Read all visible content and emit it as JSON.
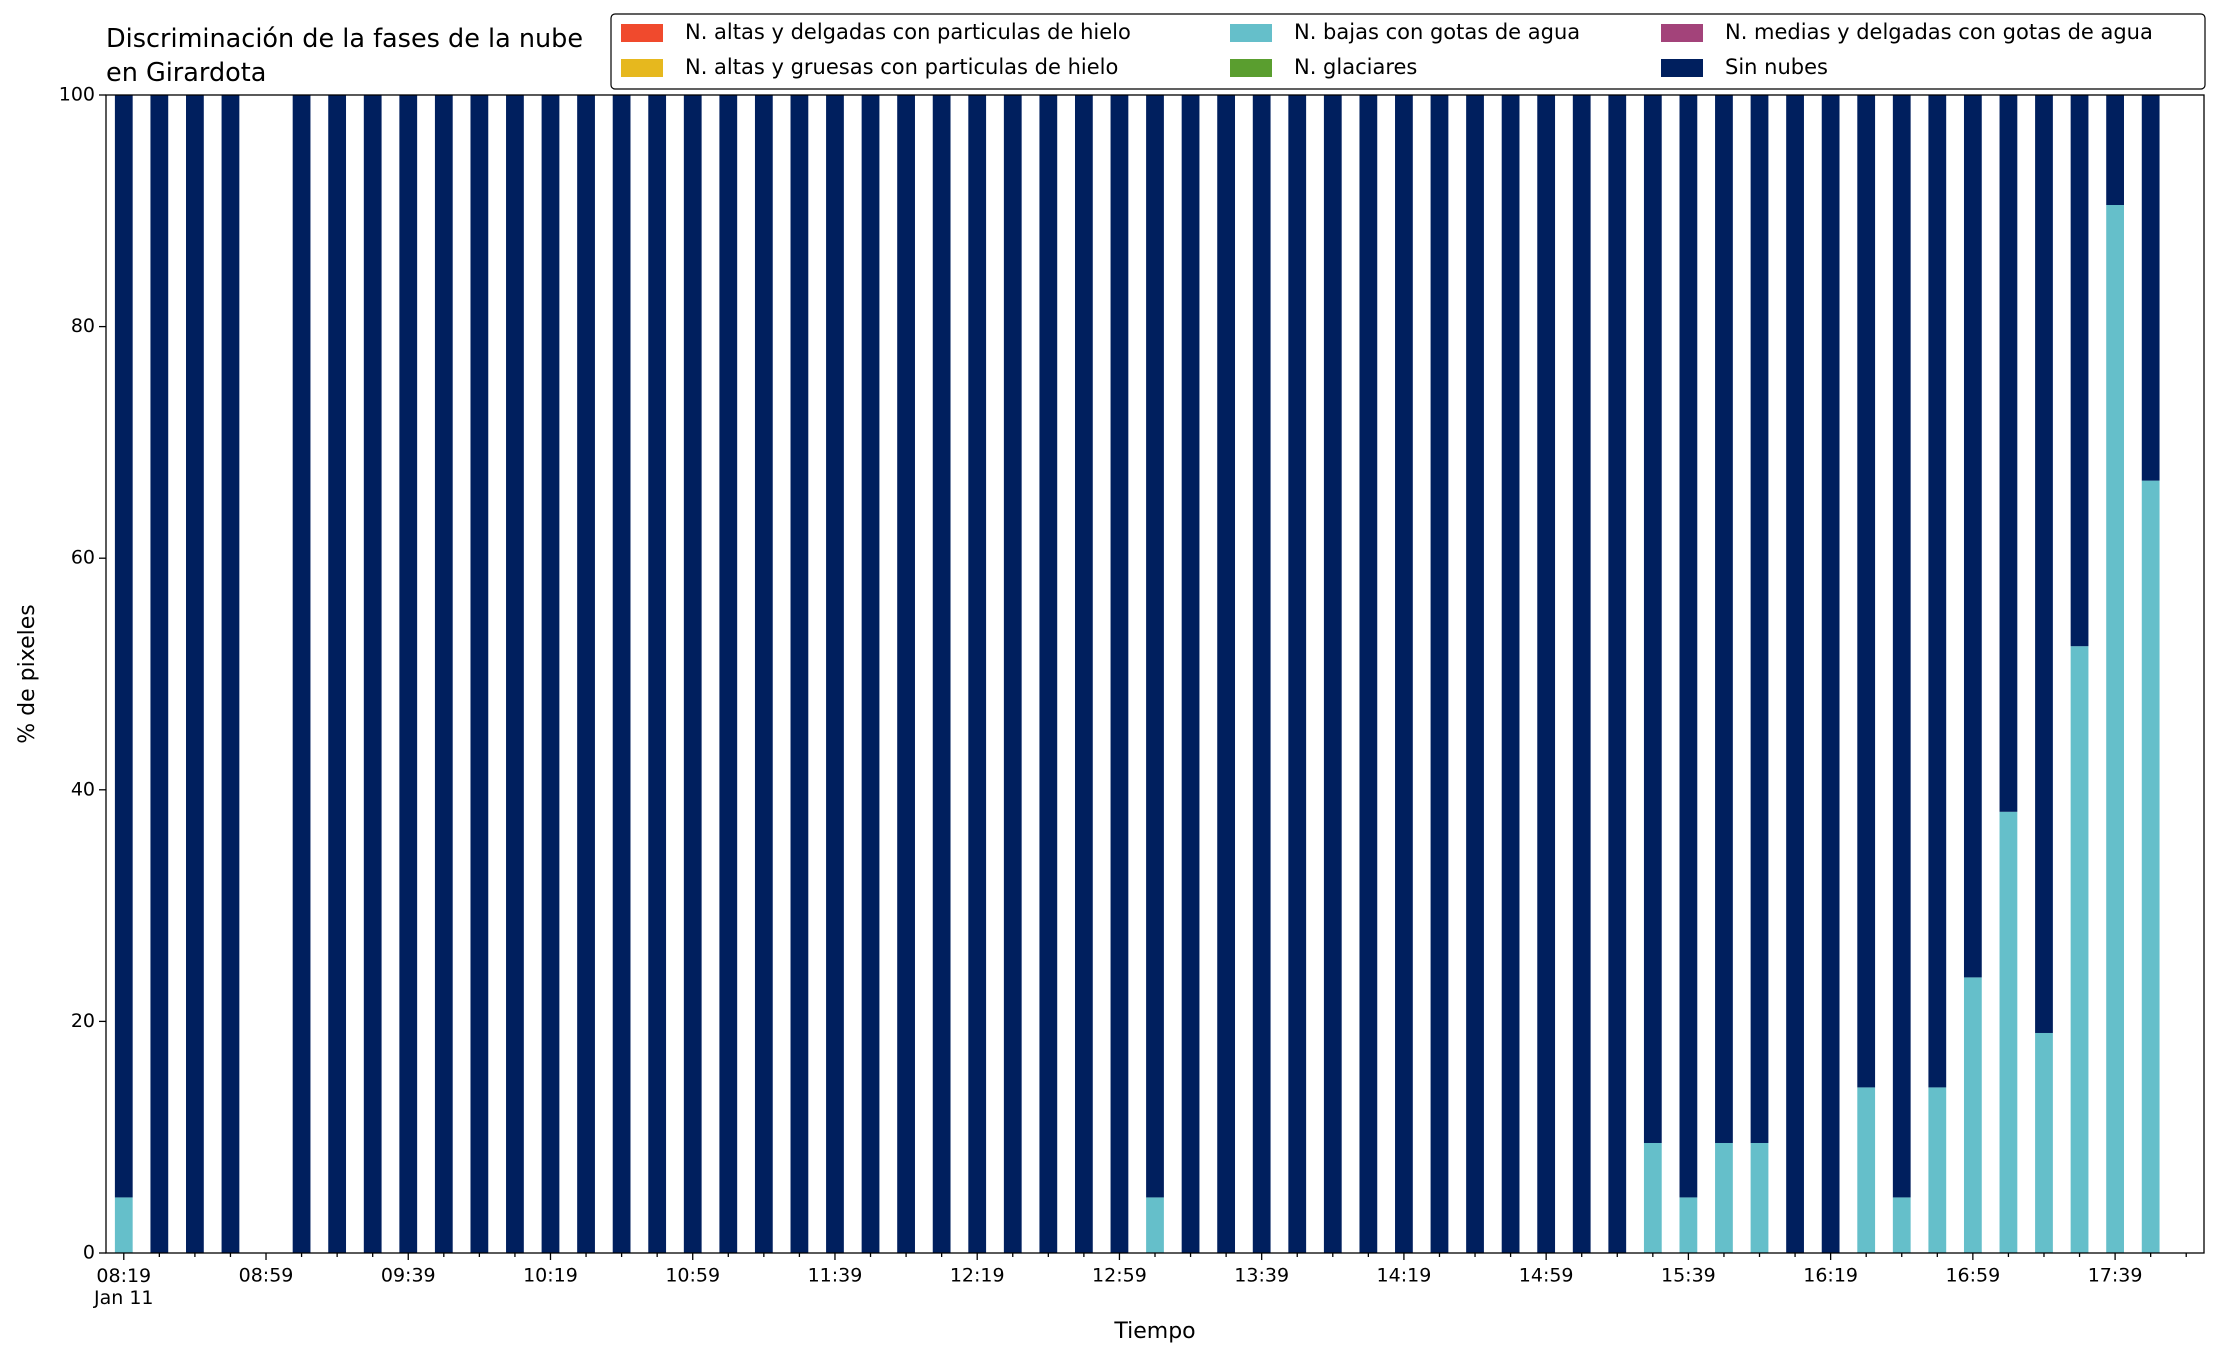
{
  "chart_data": {
    "type": "stacked_bar",
    "title": "Discriminación de la fases de la nube en Girardota",
    "x_label": "Tiempo",
    "y_label": "% de pixeles",
    "categories": [
      "08:19\nJan 11",
      null,
      null,
      null,
      "08:59",
      null,
      null,
      null,
      "09:39",
      null,
      null,
      null,
      "10:19",
      null,
      null,
      null,
      "10:59",
      null,
      null,
      null,
      "11:39",
      null,
      null,
      null,
      "12:19",
      null,
      null,
      null,
      "12:59",
      null,
      null,
      null,
      "13:39",
      null,
      null,
      null,
      "14:19",
      null,
      null,
      null,
      "14:59",
      null,
      null,
      null,
      "15:39",
      null,
      null,
      null,
      "16:19",
      null,
      null,
      null,
      "16:59",
      null,
      null,
      null,
      "17:39",
      null,
      null
    ],
    "series": [
      {
        "name": "N. altas y delgadas con particulas de hielo",
        "color": "#f04a2d",
        "values": [
          0,
          0,
          0,
          0,
          null,
          0,
          0,
          0,
          0,
          0,
          0,
          0,
          0,
          0,
          0,
          0,
          0,
          0,
          0,
          0,
          0,
          0,
          0,
          0,
          0,
          0,
          0,
          0,
          0,
          0,
          0,
          0,
          0,
          0,
          0,
          0,
          0,
          0,
          0,
          0,
          0,
          0,
          0,
          0,
          0,
          0,
          0,
          0,
          0,
          0,
          0,
          0,
          0,
          0,
          0,
          0,
          0,
          0,
          null
        ]
      },
      {
        "name": "N. altas y gruesas con particulas de hielo",
        "color": "#e6b81e",
        "values": [
          0,
          0,
          0,
          0,
          null,
          0,
          0,
          0,
          0,
          0,
          0,
          0,
          0,
          0,
          0,
          0,
          0,
          0,
          0,
          0,
          0,
          0,
          0,
          0,
          0,
          0,
          0,
          0,
          0,
          0,
          0,
          0,
          0,
          0,
          0,
          0,
          0,
          0,
          0,
          0,
          0,
          0,
          0,
          0,
          0,
          0,
          0,
          0,
          0,
          0,
          0,
          0,
          0,
          0,
          0,
          0,
          0,
          0,
          null
        ]
      },
      {
        "name": "N. bajas con gotas de agua",
        "color": "#65bfca",
        "values": [
          4.8,
          0,
          0,
          0,
          null,
          0,
          0,
          0,
          0,
          0,
          0,
          0,
          0,
          0,
          0,
          0,
          0,
          0,
          0,
          0,
          0,
          0,
          0,
          0,
          0,
          0,
          0,
          0,
          0,
          4.8,
          0,
          0,
          0,
          0,
          0,
          0,
          0,
          0,
          0,
          0,
          0,
          0,
          0,
          9.5,
          4.8,
          9.5,
          9.5,
          0,
          0,
          14.3,
          4.8,
          14.3,
          23.8,
          38.1,
          19.0,
          52.4,
          90.5,
          66.7,
          null
        ]
      },
      {
        "name": "N. glaciares",
        "color": "#5a9e2f",
        "values": [
          0,
          0,
          0,
          0,
          null,
          0,
          0,
          0,
          0,
          0,
          0,
          0,
          0,
          0,
          0,
          0,
          0,
          0,
          0,
          0,
          0,
          0,
          0,
          0,
          0,
          0,
          0,
          0,
          0,
          0,
          0,
          0,
          0,
          0,
          0,
          0,
          0,
          0,
          0,
          0,
          0,
          0,
          0,
          0,
          0,
          0,
          0,
          0,
          0,
          0,
          0,
          0,
          0,
          0,
          0,
          0,
          0,
          0,
          null
        ]
      },
      {
        "name": "N. medias y delgadas con gotas de agua",
        "color": "#a3437a",
        "values": [
          0,
          0,
          0,
          0,
          null,
          0,
          0,
          0,
          0,
          0,
          0,
          0,
          0,
          0,
          0,
          0,
          0,
          0,
          0,
          0,
          0,
          0,
          0,
          0,
          0,
          0,
          0,
          0,
          0,
          0,
          0,
          0,
          0,
          0,
          0,
          0,
          0,
          0,
          0,
          0,
          0,
          0,
          0,
          0,
          0,
          0,
          0,
          0,
          0,
          0,
          0,
          0,
          0,
          0,
          0,
          0,
          0,
          0,
          null
        ]
      },
      {
        "name": "Sin nubes",
        "color": "#001f5e",
        "values": [
          95.2,
          100,
          100,
          100,
          null,
          100,
          100,
          100,
          100,
          100,
          100,
          100,
          100,
          100,
          100,
          100,
          100,
          100,
          100,
          100,
          100,
          100,
          100,
          100,
          100,
          100,
          100,
          100,
          100,
          95.2,
          100,
          100,
          100,
          100,
          100,
          100,
          100,
          100,
          100,
          100,
          100,
          100,
          100,
          90.5,
          95.2,
          90.5,
          90.5,
          100,
          100,
          85.7,
          95.2,
          85.7,
          76.2,
          61.9,
          81.0,
          47.6,
          9.5,
          33.3,
          null
        ]
      }
    ],
    "ylim": [
      0,
      100
    ],
    "yticks": [
      0,
      20,
      40,
      60,
      80,
      100
    ],
    "grid": false
  }
}
